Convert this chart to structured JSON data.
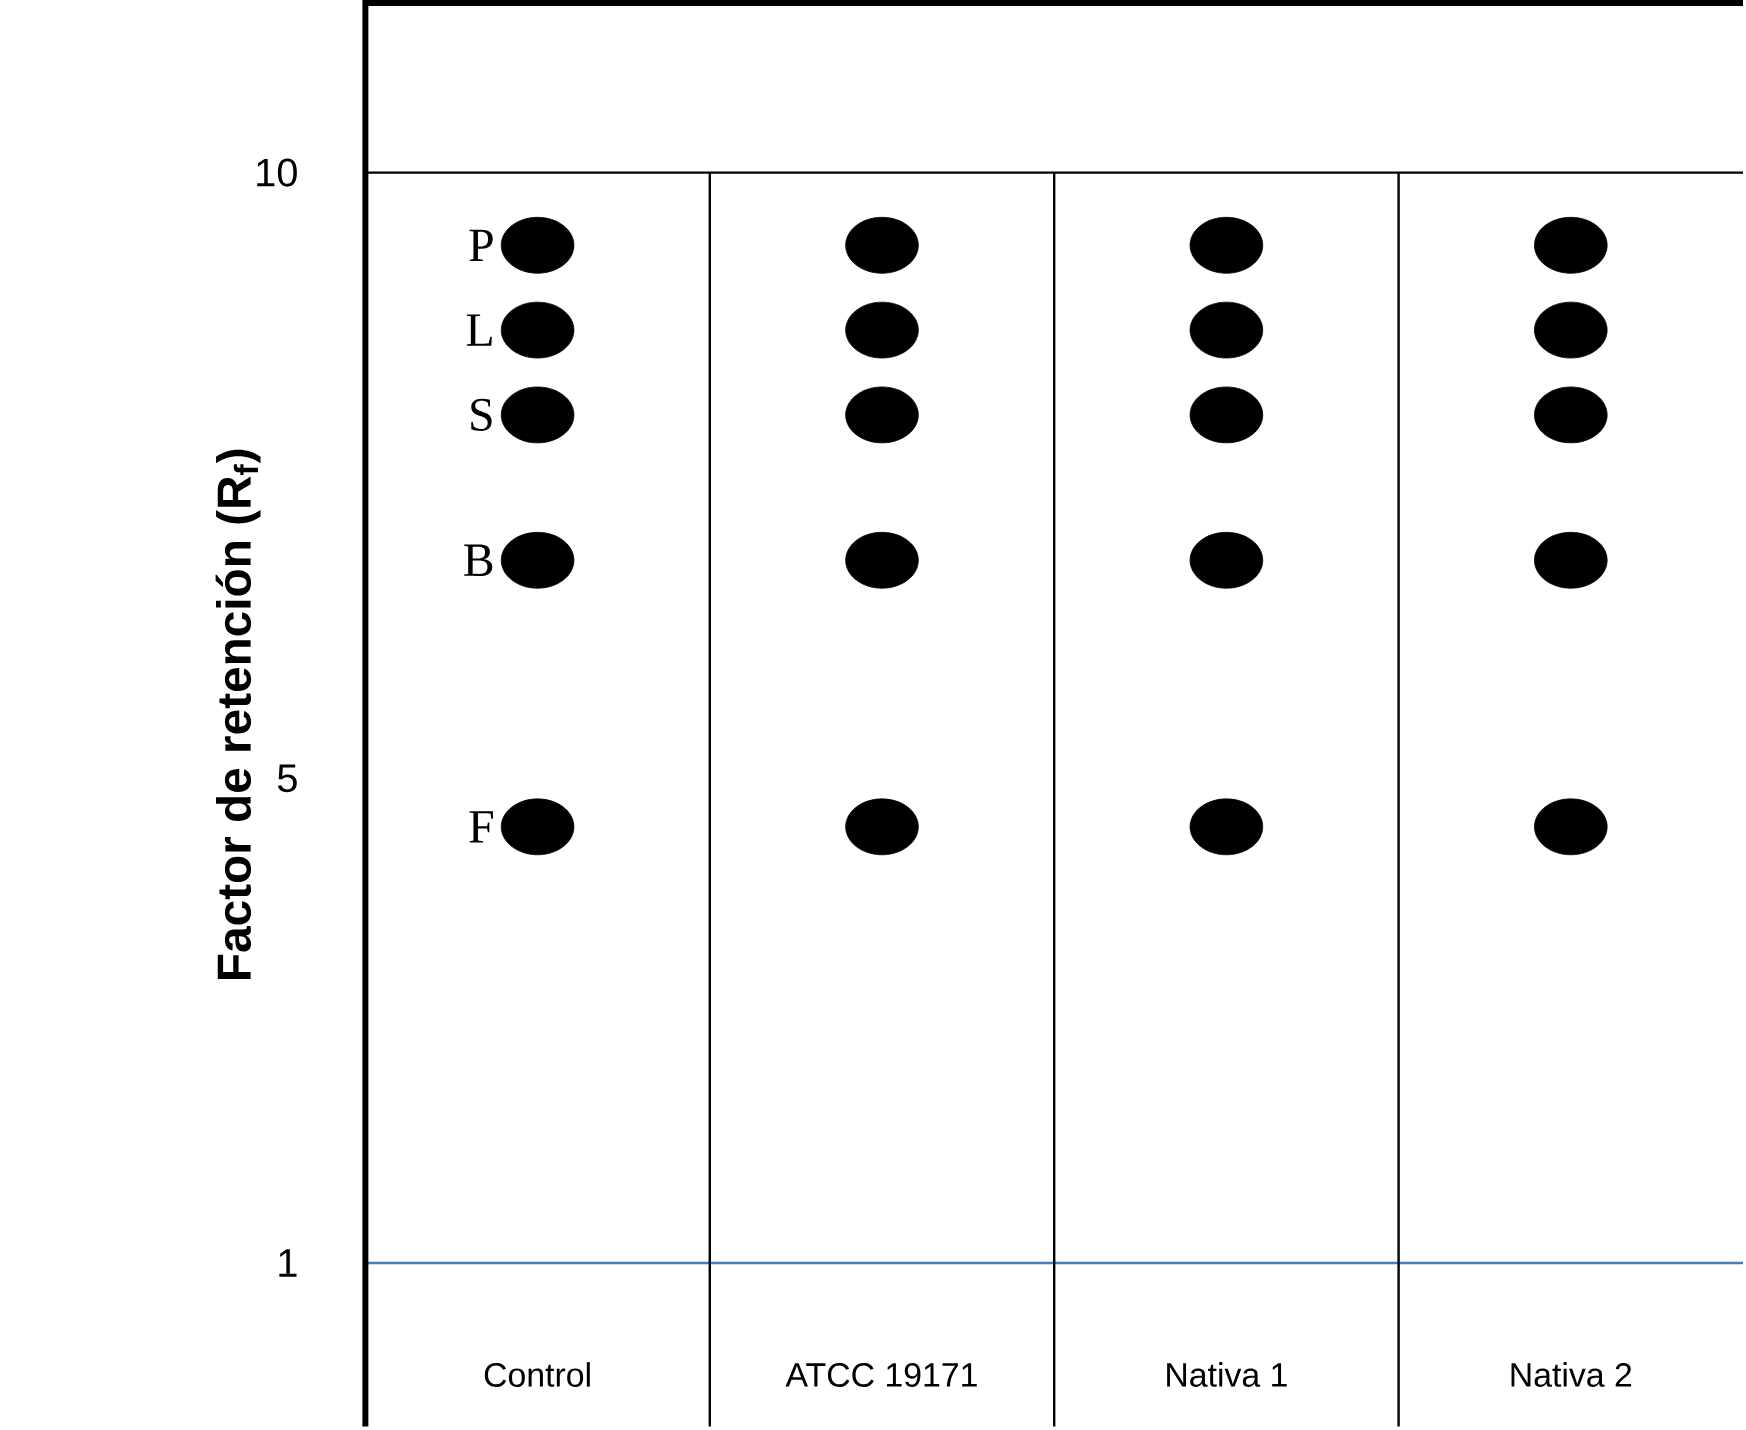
{
  "chart_data": {
    "type": "scatter",
    "ylabel": "Factor de retención (R$_{f}$)",
    "categories": [
      "Control",
      "ATCC 19171",
      "Nativa 1",
      "Nativa 2"
    ],
    "series": [
      {
        "name": "P",
        "color": "#000000",
        "values": [
          9.4,
          9.4,
          9.4,
          9.4
        ]
      },
      {
        "name": "L",
        "color": "#000000",
        "values": [
          8.7,
          8.7,
          8.7,
          8.7
        ]
      },
      {
        "name": "S",
        "color": "#000000",
        "values": [
          8.0,
          8.0,
          8.0,
          8.0
        ]
      },
      {
        "name": "B",
        "color": "#000000",
        "values": [
          6.8,
          6.8,
          6.8,
          6.8
        ]
      },
      {
        "name": "F",
        "color": "#000000",
        "values": [
          4.6,
          4.6,
          4.6,
          4.6
        ]
      }
    ],
    "ylim": [
      -0.35,
      11.4
    ],
    "yticks": [
      1,
      5,
      10
    ],
    "marker": "circle",
    "legend": "left",
    "ref_lines": [
      {
        "axis": "y",
        "value": 10,
        "color": "#000000"
      },
      {
        "axis": "y",
        "value": 1,
        "color": "#4a7ebb"
      }
    ]
  }
}
